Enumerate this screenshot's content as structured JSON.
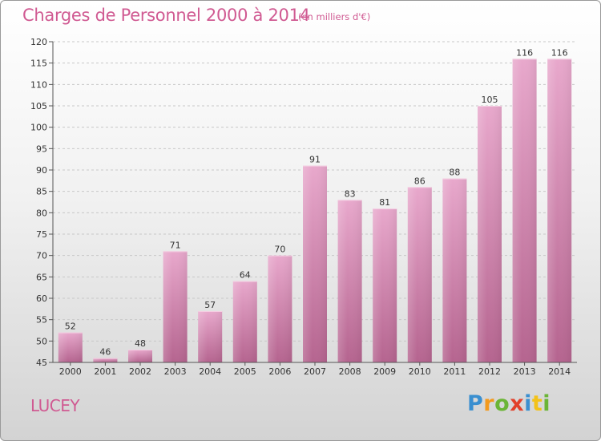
{
  "header": {
    "title": "Charges de Personnel 2000 à 2014",
    "subtitle": "(en milliers d'€)"
  },
  "footer": {
    "town": "LUCEY",
    "logo": {
      "letters": [
        "P",
        "r",
        "o",
        "x",
        "i",
        "t",
        "i"
      ],
      "colors": [
        "#3a8fd0",
        "#f39a1e",
        "#6bb536",
        "#e2412b",
        "#3a8fd0",
        "#f3c21a",
        "#6bb536"
      ]
    }
  },
  "colors": {
    "bar_top": "#e8a8cc",
    "bar_bottom": "#b5648f",
    "accent": "#d05a92"
  },
  "chart_data": {
    "type": "bar",
    "title": "Charges de Personnel 2000 à 2014",
    "subtitle": "(en milliers d'€)",
    "categories": [
      "2000",
      "2001",
      "2002",
      "2003",
      "2004",
      "2005",
      "2006",
      "2007",
      "2008",
      "2009",
      "2010",
      "2011",
      "2012",
      "2013",
      "2014"
    ],
    "values": [
      52,
      46,
      48,
      71,
      57,
      64,
      70,
      91,
      83,
      81,
      86,
      88,
      105,
      116,
      116
    ],
    "data_labels": [
      "52",
      "46",
      "48",
      "71",
      "57",
      "64",
      "70",
      "91",
      "83",
      "81",
      "86",
      "88",
      "105",
      "116",
      "116"
    ],
    "ylim": [
      45,
      120
    ],
    "yticks": [
      45,
      50,
      55,
      60,
      65,
      70,
      75,
      80,
      85,
      90,
      95,
      100,
      105,
      110,
      115,
      120
    ],
    "grid": true,
    "xlabel": "",
    "ylabel": ""
  }
}
